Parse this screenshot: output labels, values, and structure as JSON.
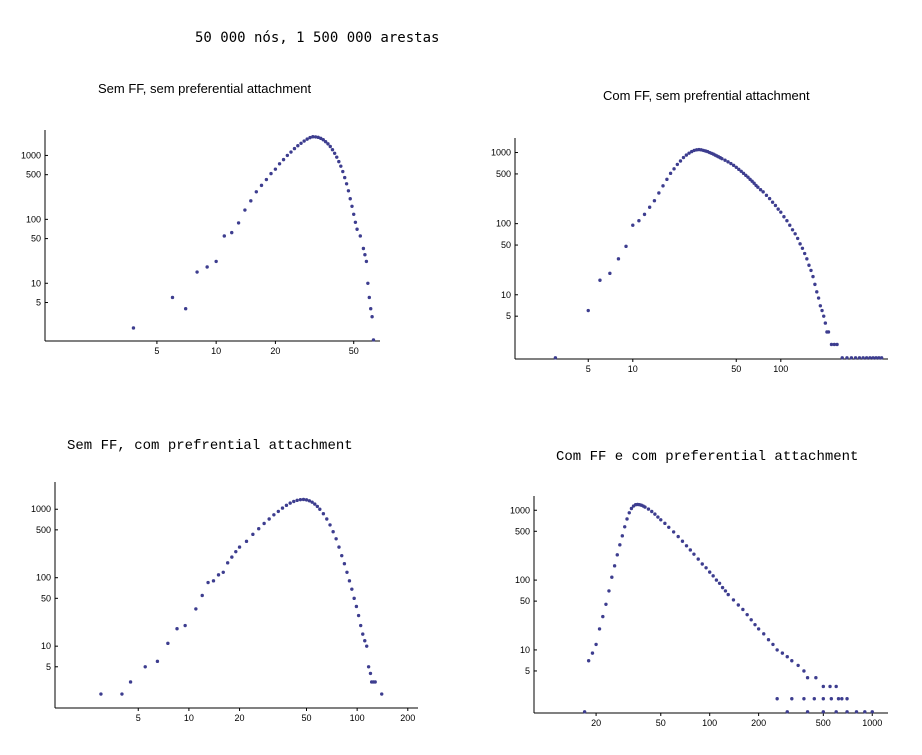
{
  "figure_title": "50 000 nós, 1 500 000 arestas",
  "chart_data": [
    {
      "type": "scatter",
      "title": "Sem FF, sem preferential attachment",
      "xscale": "log",
      "yscale": "log",
      "xlim": [
        1.35,
        68
      ],
      "ylim": [
        1.25,
        2500
      ],
      "xticks": [
        5,
        10,
        20,
        50
      ],
      "yticks": [
        5,
        10,
        50,
        100,
        500,
        1000
      ],
      "color": "#3d3d8f",
      "points": [
        [
          3.8,
          2
        ],
        [
          6,
          6
        ],
        [
          7,
          4
        ],
        [
          8,
          15
        ],
        [
          9,
          18
        ],
        [
          10,
          22
        ],
        [
          11,
          55
        ],
        [
          12,
          62
        ],
        [
          13,
          88
        ],
        [
          14,
          140
        ],
        [
          15,
          195
        ],
        [
          16,
          270
        ],
        [
          17,
          340
        ],
        [
          18,
          420
        ],
        [
          19,
          520
        ],
        [
          20,
          610
        ],
        [
          21,
          740
        ],
        [
          22,
          860
        ],
        [
          23,
          1000
        ],
        [
          24,
          1130
        ],
        [
          25,
          1280
        ],
        [
          26,
          1420
        ],
        [
          27,
          1550
        ],
        [
          28,
          1680
        ],
        [
          29,
          1800
        ],
        [
          30,
          1900
        ],
        [
          31,
          1960
        ],
        [
          32,
          1950
        ],
        [
          33,
          1920
        ],
        [
          34,
          1850
        ],
        [
          35,
          1760
        ],
        [
          36,
          1640
        ],
        [
          37,
          1520
        ],
        [
          38,
          1380
        ],
        [
          39,
          1230
        ],
        [
          40,
          1080
        ],
        [
          41,
          940
        ],
        [
          42,
          800
        ],
        [
          43,
          680
        ],
        [
          44,
          560
        ],
        [
          45,
          450
        ],
        [
          46,
          360
        ],
        [
          47,
          280
        ],
        [
          48,
          210
        ],
        [
          49,
          160
        ],
        [
          50,
          120
        ],
        [
          51,
          90
        ],
        [
          52,
          70
        ],
        [
          54,
          55
        ],
        [
          56,
          35
        ],
        [
          57,
          28
        ],
        [
          58,
          22
        ],
        [
          59,
          10
        ],
        [
          60,
          6
        ],
        [
          61,
          4
        ],
        [
          62,
          3
        ],
        [
          63,
          1.3
        ]
      ]
    },
    {
      "type": "scatter",
      "title": "Com FF, sem prefrential attachment",
      "xscale": "log",
      "yscale": "log",
      "xlim": [
        1.6,
        530
      ],
      "ylim": [
        1.25,
        1600
      ],
      "xticks": [
        5,
        10,
        50,
        100
      ],
      "yticks": [
        5,
        10,
        50,
        100,
        500,
        1000
      ],
      "color": "#3d3d8f",
      "points": [
        [
          3,
          1.3
        ],
        [
          5,
          6
        ],
        [
          6,
          16
        ],
        [
          7,
          20
        ],
        [
          8,
          32
        ],
        [
          9,
          48
        ],
        [
          10,
          95
        ],
        [
          11,
          110
        ],
        [
          12,
          135
        ],
        [
          13,
          170
        ],
        [
          14,
          210
        ],
        [
          15,
          270
        ],
        [
          16,
          340
        ],
        [
          17,
          420
        ],
        [
          18,
          510
        ],
        [
          19,
          590
        ],
        [
          20,
          680
        ],
        [
          21,
          760
        ],
        [
          22,
          850
        ],
        [
          23,
          920
        ],
        [
          24,
          980
        ],
        [
          25,
          1030
        ],
        [
          26,
          1070
        ],
        [
          27,
          1090
        ],
        [
          28,
          1100
        ],
        [
          29,
          1090
        ],
        [
          30,
          1070
        ],
        [
          31,
          1050
        ],
        [
          32,
          1030
        ],
        [
          33,
          1000
        ],
        [
          34,
          975
        ],
        [
          35,
          950
        ],
        [
          36,
          920
        ],
        [
          37,
          895
        ],
        [
          38,
          870
        ],
        [
          39,
          845
        ],
        [
          40,
          820
        ],
        [
          42,
          780
        ],
        [
          44,
          740
        ],
        [
          46,
          700
        ],
        [
          48,
          660
        ],
        [
          50,
          620
        ],
        [
          52,
          580
        ],
        [
          54,
          545
        ],
        [
          56,
          510
        ],
        [
          58,
          478
        ],
        [
          60,
          450
        ],
        [
          62,
          420
        ],
        [
          64,
          395
        ],
        [
          66,
          370
        ],
        [
          68,
          345
        ],
        [
          70,
          325
        ],
        [
          73,
          300
        ],
        [
          76,
          280
        ],
        [
          80,
          250
        ],
        [
          84,
          225
        ],
        [
          88,
          200
        ],
        [
          92,
          180
        ],
        [
          96,
          160
        ],
        [
          100,
          145
        ],
        [
          105,
          125
        ],
        [
          110,
          110
        ],
        [
          115,
          95
        ],
        [
          120,
          82
        ],
        [
          125,
          72
        ],
        [
          130,
          62
        ],
        [
          135,
          52
        ],
        [
          140,
          45
        ],
        [
          145,
          38
        ],
        [
          150,
          32
        ],
        [
          155,
          26
        ],
        [
          160,
          22
        ],
        [
          165,
          18
        ],
        [
          170,
          14
        ],
        [
          175,
          11
        ],
        [
          180,
          9
        ],
        [
          185,
          7
        ],
        [
          190,
          6
        ],
        [
          195,
          5
        ],
        [
          200,
          4
        ],
        [
          205,
          3
        ],
        [
          210,
          3
        ],
        [
          220,
          2
        ],
        [
          230,
          2
        ],
        [
          240,
          2
        ],
        [
          260,
          1.3
        ],
        [
          280,
          1.3
        ],
        [
          300,
          1.3
        ],
        [
          320,
          1.3
        ],
        [
          340,
          1.3
        ],
        [
          360,
          1.3
        ],
        [
          380,
          1.3
        ],
        [
          400,
          1.3
        ],
        [
          420,
          1.3
        ],
        [
          440,
          1.3
        ],
        [
          460,
          1.3
        ],
        [
          480,
          1.3
        ]
      ]
    },
    {
      "type": "scatter",
      "title": "Sem FF, com prefrential attachment",
      "xscale": "log",
      "yscale": "log",
      "xlim": [
        1.6,
        230
      ],
      "ylim": [
        1.25,
        2500
      ],
      "xticks": [
        5,
        10,
        20,
        50,
        100,
        200
      ],
      "yticks": [
        5,
        10,
        50,
        100,
        500,
        1000
      ],
      "color": "#3d3d8f",
      "points": [
        [
          3,
          2
        ],
        [
          4,
          2
        ],
        [
          4.5,
          3
        ],
        [
          5.5,
          5
        ],
        [
          6.5,
          6
        ],
        [
          7.5,
          11
        ],
        [
          8.5,
          18
        ],
        [
          9.5,
          20
        ],
        [
          11,
          35
        ],
        [
          12,
          55
        ],
        [
          13,
          85
        ],
        [
          14,
          90
        ],
        [
          15,
          110
        ],
        [
          16,
          120
        ],
        [
          17,
          165
        ],
        [
          18,
          200
        ],
        [
          19,
          240
        ],
        [
          20,
          280
        ],
        [
          22,
          340
        ],
        [
          24,
          430
        ],
        [
          26,
          520
        ],
        [
          28,
          620
        ],
        [
          30,
          720
        ],
        [
          32,
          830
        ],
        [
          34,
          930
        ],
        [
          36,
          1040
        ],
        [
          38,
          1140
        ],
        [
          40,
          1230
        ],
        [
          42,
          1300
        ],
        [
          44,
          1350
        ],
        [
          46,
          1380
        ],
        [
          48,
          1390
        ],
        [
          50,
          1370
        ],
        [
          52,
          1330
        ],
        [
          54,
          1270
        ],
        [
          56,
          1190
        ],
        [
          58,
          1100
        ],
        [
          60,
          1000
        ],
        [
          63,
          860
        ],
        [
          66,
          720
        ],
        [
          69,
          590
        ],
        [
          72,
          470
        ],
        [
          75,
          370
        ],
        [
          78,
          280
        ],
        [
          81,
          210
        ],
        [
          84,
          160
        ],
        [
          87,
          120
        ],
        [
          90,
          90
        ],
        [
          93,
          68
        ],
        [
          96,
          50
        ],
        [
          99,
          38
        ],
        [
          102,
          28
        ],
        [
          105,
          20
        ],
        [
          108,
          15
        ],
        [
          111,
          12
        ],
        [
          114,
          10
        ],
        [
          117,
          5
        ],
        [
          120,
          4
        ],
        [
          122,
          3
        ],
        [
          125,
          3
        ],
        [
          128,
          3
        ],
        [
          140,
          2
        ]
      ]
    },
    {
      "type": "scatter",
      "title": "Com FF e com preferential attachment",
      "xscale": "log",
      "yscale": "log",
      "xlim": [
        8.3,
        1250
      ],
      "ylim": [
        1.25,
        1600
      ],
      "xticks": [
        20,
        50,
        100,
        200,
        500,
        1000
      ],
      "yticks": [
        5,
        10,
        50,
        100,
        500,
        1000
      ],
      "color": "#3d3d8f",
      "points": [
        [
          17,
          1.3
        ],
        [
          18,
          7
        ],
        [
          19,
          9
        ],
        [
          20,
          12
        ],
        [
          21,
          20
        ],
        [
          22,
          30
        ],
        [
          23,
          45
        ],
        [
          24,
          70
        ],
        [
          25,
          110
        ],
        [
          26,
          160
        ],
        [
          27,
          230
        ],
        [
          28,
          320
        ],
        [
          29,
          430
        ],
        [
          30,
          580
        ],
        [
          31,
          750
        ],
        [
          32,
          920
        ],
        [
          33,
          1060
        ],
        [
          34,
          1150
        ],
        [
          35,
          1200
        ],
        [
          36,
          1210
        ],
        [
          37,
          1200
        ],
        [
          38,
          1180
        ],
        [
          39,
          1150
        ],
        [
          40,
          1110
        ],
        [
          42,
          1040
        ],
        [
          44,
          960
        ],
        [
          46,
          880
        ],
        [
          48,
          800
        ],
        [
          50,
          730
        ],
        [
          53,
          650
        ],
        [
          56,
          570
        ],
        [
          60,
          490
        ],
        [
          64,
          420
        ],
        [
          68,
          360
        ],
        [
          72,
          310
        ],
        [
          76,
          270
        ],
        [
          80,
          235
        ],
        [
          85,
          200
        ],
        [
          90,
          170
        ],
        [
          95,
          150
        ],
        [
          100,
          130
        ],
        [
          105,
          115
        ],
        [
          110,
          100
        ],
        [
          115,
          90
        ],
        [
          120,
          78
        ],
        [
          125,
          70
        ],
        [
          130,
          62
        ],
        [
          140,
          52
        ],
        [
          150,
          44
        ],
        [
          160,
          38
        ],
        [
          170,
          32
        ],
        [
          180,
          27
        ],
        [
          190,
          23
        ],
        [
          200,
          20
        ],
        [
          215,
          17
        ],
        [
          230,
          14
        ],
        [
          245,
          12
        ],
        [
          260,
          10
        ],
        [
          280,
          9
        ],
        [
          300,
          8
        ],
        [
          320,
          7
        ],
        [
          350,
          6
        ],
        [
          380,
          5
        ],
        [
          400,
          4
        ],
        [
          450,
          4
        ],
        [
          500,
          3
        ],
        [
          550,
          3
        ],
        [
          600,
          3
        ],
        [
          650,
          2
        ],
        [
          700,
          2
        ],
        [
          260,
          2
        ],
        [
          320,
          2
        ],
        [
          380,
          2
        ],
        [
          440,
          2
        ],
        [
          500,
          2
        ],
        [
          560,
          2
        ],
        [
          620,
          2
        ],
        [
          300,
          1.3
        ],
        [
          400,
          1.3
        ],
        [
          500,
          1.3
        ],
        [
          600,
          1.3
        ],
        [
          700,
          1.3
        ],
        [
          800,
          1.3
        ],
        [
          900,
          1.3
        ],
        [
          1000,
          1.3
        ]
      ]
    }
  ]
}
